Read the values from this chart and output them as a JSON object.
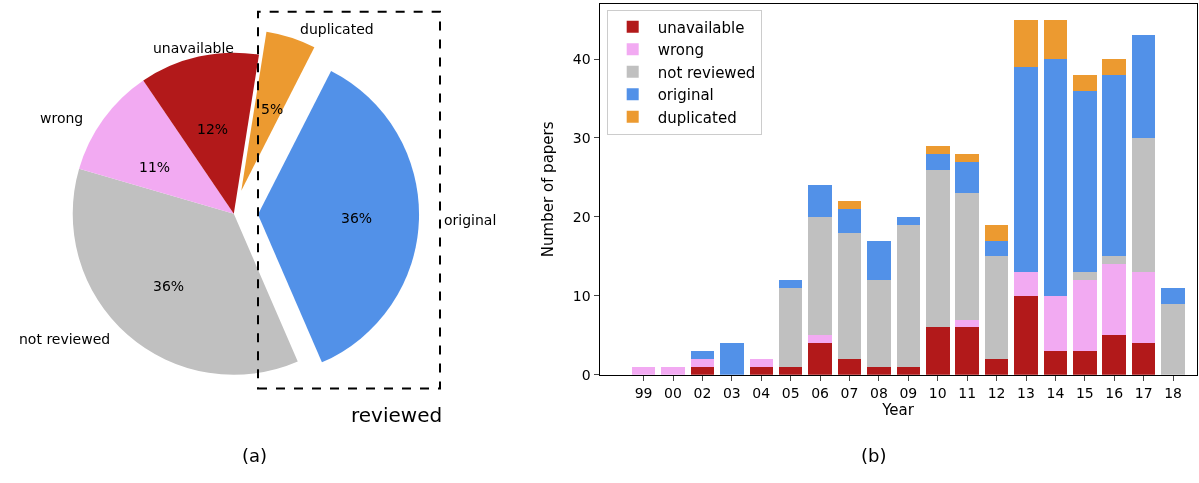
{
  "chart_data": [
    {
      "type": "pie",
      "categories": [
        "duplicated",
        "original",
        "not reviewed",
        "wrong",
        "unavailable"
      ],
      "values": [
        5,
        36,
        36,
        11,
        12
      ],
      "colors": [
        "#ec9a30",
        "#5291e8",
        "#c0c0c0",
        "#f2aaf2",
        "#b2191a"
      ],
      "value_labels": [
        "5%",
        "36%",
        "36%",
        "11%",
        "12%"
      ],
      "annotations": [
        "reviewed",
        "(a)"
      ]
    },
    {
      "type": "bar",
      "stacked": true,
      "categories": [
        "99",
        "00",
        "02",
        "03",
        "04",
        "05",
        "06",
        "07",
        "08",
        "09",
        "10",
        "11",
        "12",
        "13",
        "14",
        "15",
        "16",
        "17",
        "18"
      ],
      "series": [
        {
          "name": "unavailable",
          "color": "#b2191a",
          "values": [
            0,
            0,
            1,
            0,
            1,
            1,
            4,
            2,
            1,
            1,
            6,
            6,
            2,
            10,
            3,
            3,
            5,
            4,
            0
          ]
        },
        {
          "name": "wrong",
          "color": "#f2aaf2",
          "values": [
            1,
            1,
            1,
            0,
            1,
            0,
            1,
            0,
            0,
            0,
            0,
            1,
            0,
            3,
            7,
            9,
            9,
            9,
            0
          ]
        },
        {
          "name": "not reviewed",
          "color": "#c0c0c0",
          "values": [
            0,
            0,
            0,
            0,
            0,
            10,
            15,
            16,
            11,
            18,
            20,
            16,
            13,
            0,
            0,
            1,
            1,
            17,
            9
          ]
        },
        {
          "name": "original",
          "color": "#5291e8",
          "values": [
            0,
            0,
            1,
            4,
            0,
            1,
            4,
            3,
            5,
            1,
            2,
            4,
            2,
            26,
            30,
            23,
            23,
            13,
            2
          ]
        },
        {
          "name": "duplicated",
          "color": "#ec9a30",
          "values": [
            0,
            0,
            0,
            0,
            0,
            0,
            0,
            1,
            0,
            0,
            1,
            1,
            2,
            6,
            5,
            2,
            2,
            0,
            0
          ]
        }
      ],
      "xlabel": "Year",
      "ylabel": "Number of papers",
      "ylim": [
        0,
        47
      ],
      "yticks": [
        0,
        10,
        20,
        30,
        40
      ],
      "legend": "top left",
      "annotations": [
        "(b)"
      ]
    }
  ]
}
